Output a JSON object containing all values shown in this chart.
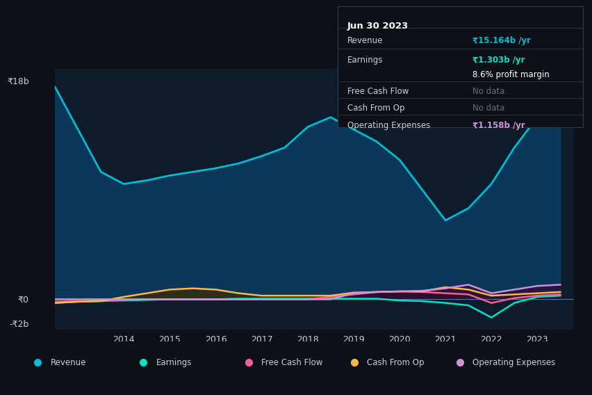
{
  "background_color": "#0d1117",
  "plot_bg_color": "#0d1b2a",
  "grid_color": "#1e3a5f",
  "text_color": "#c9d1d9",
  "title_box": {
    "date": "Jun 30 2023",
    "revenue": "₹15.164b /yr",
    "earnings": "₹1.303b /yr",
    "profit_margin": "8.6% profit margin",
    "free_cash_flow": "No data",
    "cash_from_op": "No data",
    "operating_expenses": "₹1.158b /yr"
  },
  "ylabel_top": "₹18b",
  "ylabel_zero": "₹0",
  "ylabel_bottom": "-₹2b",
  "xlim": [
    2012.5,
    2023.8
  ],
  "ylim": [
    -2.5,
    19
  ],
  "legend": {
    "Revenue": "#00bcd4",
    "Earnings": "#00e5c3",
    "Free Cash Flow": "#f06292",
    "Cash From Op": "#ffb74d",
    "Operating Expenses": "#ce93d8"
  },
  "revenue": {
    "x": [
      2012.5,
      2013.0,
      2013.5,
      2014.0,
      2014.5,
      2015.0,
      2015.5,
      2016.0,
      2016.5,
      2017.0,
      2017.5,
      2018.0,
      2018.5,
      2019.0,
      2019.5,
      2020.0,
      2020.5,
      2021.0,
      2021.5,
      2022.0,
      2022.5,
      2023.0,
      2023.5
    ],
    "y": [
      17.5,
      14.0,
      10.5,
      9.5,
      9.8,
      10.2,
      10.5,
      10.8,
      11.2,
      11.8,
      12.5,
      14.2,
      15.0,
      14.0,
      13.0,
      11.5,
      9.0,
      6.5,
      7.5,
      9.5,
      12.5,
      15.0,
      15.5
    ]
  },
  "earnings": {
    "x": [
      2012.5,
      2013.0,
      2013.5,
      2014.0,
      2014.5,
      2015.0,
      2015.5,
      2016.0,
      2016.5,
      2017.0,
      2017.5,
      2018.0,
      2018.5,
      2019.0,
      2019.5,
      2020.0,
      2020.5,
      2021.0,
      2021.5,
      2022.0,
      2022.5,
      2023.0,
      2023.5
    ],
    "y": [
      -0.3,
      -0.2,
      -0.15,
      -0.1,
      -0.05,
      0.0,
      0.0,
      0.0,
      0.05,
      0.05,
      0.05,
      0.05,
      0.05,
      0.05,
      0.05,
      -0.1,
      -0.15,
      -0.3,
      -0.5,
      -1.5,
      -0.3,
      0.2,
      0.3
    ]
  },
  "free_cash_flow": {
    "x": [
      2012.5,
      2013.0,
      2013.5,
      2014.0,
      2014.5,
      2015.0,
      2015.5,
      2016.0,
      2016.5,
      2017.0,
      2017.5,
      2018.0,
      2018.5,
      2019.0,
      2019.5,
      2020.0,
      2020.5,
      2021.0,
      2021.5,
      2022.0,
      2022.5,
      2023.0,
      2023.5
    ],
    "y": [
      -0.2,
      -0.15,
      -0.1,
      -0.05,
      0.0,
      0.0,
      0.0,
      0.0,
      0.0,
      0.0,
      0.0,
      0.0,
      0.2,
      0.4,
      0.6,
      0.65,
      0.6,
      0.5,
      0.4,
      -0.3,
      0.1,
      0.3,
      0.4
    ]
  },
  "cash_from_op": {
    "x": [
      2012.5,
      2013.0,
      2013.5,
      2014.0,
      2014.5,
      2015.0,
      2015.5,
      2016.0,
      2016.5,
      2017.0,
      2017.5,
      2018.0,
      2018.5,
      2019.0,
      2019.5,
      2020.0,
      2020.5,
      2021.0,
      2021.5,
      2022.0,
      2022.5,
      2023.0,
      2023.5
    ],
    "y": [
      -0.3,
      -0.2,
      -0.15,
      0.2,
      0.5,
      0.8,
      0.9,
      0.8,
      0.5,
      0.3,
      0.3,
      0.3,
      0.3,
      0.55,
      0.6,
      0.65,
      0.65,
      1.0,
      0.8,
      0.3,
      0.4,
      0.5,
      0.6
    ]
  },
  "operating_expenses": {
    "x": [
      2012.5,
      2013.0,
      2013.5,
      2014.0,
      2014.5,
      2015.0,
      2015.5,
      2016.0,
      2016.5,
      2017.0,
      2017.5,
      2018.0,
      2018.5,
      2019.0,
      2019.5,
      2020.0,
      2020.5,
      2021.0,
      2021.5,
      2022.0,
      2022.5,
      2023.0,
      2023.5
    ],
    "y": [
      0.0,
      0.0,
      0.0,
      0.0,
      0.0,
      0.0,
      0.0,
      0.0,
      0.0,
      0.0,
      0.0,
      0.0,
      0.0,
      0.5,
      0.6,
      0.65,
      0.7,
      0.9,
      1.2,
      0.5,
      0.8,
      1.1,
      1.2
    ]
  }
}
